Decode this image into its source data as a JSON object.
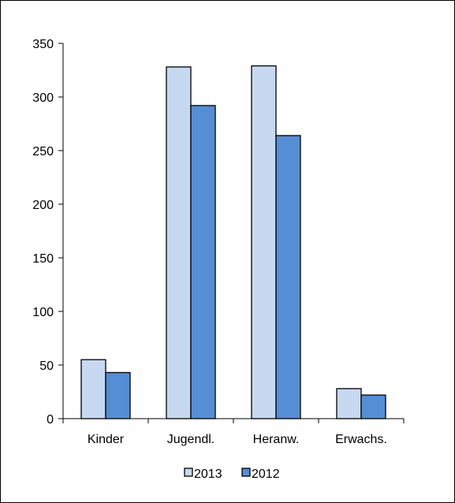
{
  "chart_data": {
    "type": "bar",
    "categories": [
      "Kinder",
      "Jugendl.",
      "Heranw.",
      "Erwachs."
    ],
    "series": [
      {
        "name": "2013",
        "values": [
          55,
          328,
          329,
          28
        ],
        "color": "#c6d9f1"
      },
      {
        "name": "2012",
        "values": [
          43,
          292,
          264,
          22
        ],
        "color": "#558ed5"
      }
    ],
    "title": "",
    "xlabel": "",
    "ylabel": "",
    "ylim": [
      0,
      350
    ],
    "yticks": [
      0,
      50,
      100,
      150,
      200,
      250,
      300,
      350
    ],
    "grid": false,
    "legend_position": "bottom",
    "bar_edge_color": "#000000"
  }
}
